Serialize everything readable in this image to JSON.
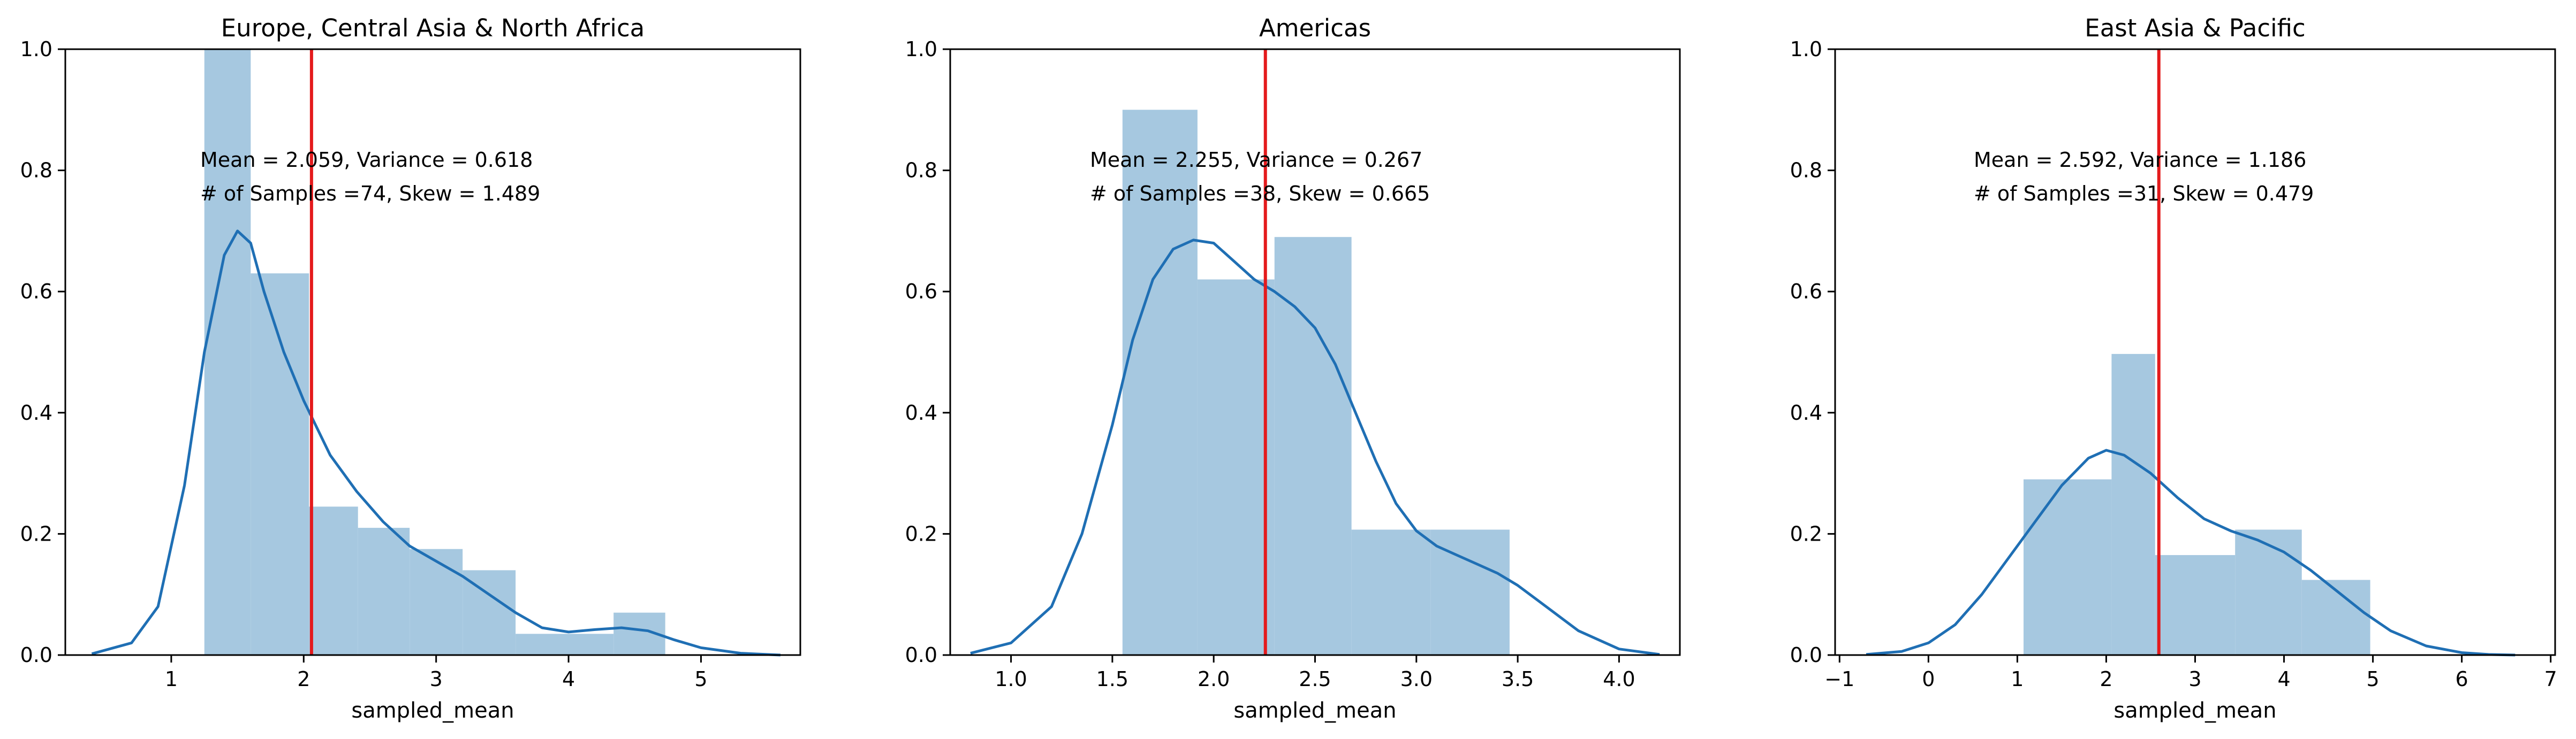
{
  "colors": {
    "bar": "#a6c8e0",
    "kde": "#1f6fb4",
    "mean_line": "#e41a1c",
    "axis": "#000000"
  },
  "chart_data": [
    {
      "type": "bar",
      "title": "Europe, Central Asia & North Africa",
      "xlabel": "sampled_mean",
      "ylabel": "",
      "xlim": [
        0.2,
        5.75
      ],
      "ylim": [
        0,
        1.0
      ],
      "xticks": [
        1,
        2,
        3,
        4,
        5
      ],
      "xtick_labels": [
        "1",
        "2",
        "3",
        "4",
        "5"
      ],
      "yticks": [
        0,
        0.2,
        0.4,
        0.6,
        0.8,
        1.0
      ],
      "ytick_labels": [
        "0.0",
        "0.2",
        "0.4",
        "0.6",
        "0.8",
        "1.0"
      ],
      "bins": [
        {
          "x0": 1.25,
          "x1": 1.6,
          "value": 1.0
        },
        {
          "x0": 1.6,
          "x1": 2.04,
          "value": 0.63
        },
        {
          "x0": 2.04,
          "x1": 2.41,
          "value": 0.245
        },
        {
          "x0": 2.41,
          "x1": 2.8,
          "value": 0.21
        },
        {
          "x0": 2.8,
          "x1": 3.2,
          "value": 0.175
        },
        {
          "x0": 3.2,
          "x1": 3.6,
          "value": 0.14
        },
        {
          "x0": 3.6,
          "x1": 4.34,
          "value": 0.035
        },
        {
          "x0": 4.34,
          "x1": 4.73,
          "value": 0.07
        }
      ],
      "kde": {
        "x": [
          0.4,
          0.7,
          0.9,
          1.1,
          1.25,
          1.4,
          1.5,
          1.6,
          1.7,
          1.85,
          2.0,
          2.2,
          2.4,
          2.6,
          2.8,
          3.0,
          3.2,
          3.4,
          3.6,
          3.8,
          4.0,
          4.2,
          4.4,
          4.6,
          4.8,
          5.0,
          5.3,
          5.6
        ],
        "y": [
          0.002,
          0.02,
          0.08,
          0.28,
          0.5,
          0.66,
          0.7,
          0.68,
          0.6,
          0.5,
          0.42,
          0.33,
          0.27,
          0.22,
          0.18,
          0.155,
          0.13,
          0.1,
          0.07,
          0.045,
          0.038,
          0.042,
          0.045,
          0.04,
          0.025,
          0.012,
          0.003,
          0.0
        ]
      },
      "mean": 2.059,
      "annotations": [
        "Mean = 2.059, Variance = 0.618",
        "# of Samples =74, Skew = 1.489"
      ]
    },
    {
      "type": "bar",
      "title": "Americas",
      "xlabel": "sampled_mean",
      "ylabel": "",
      "xlim": [
        0.7,
        4.3
      ],
      "ylim": [
        0,
        1.0
      ],
      "xticks": [
        1.0,
        1.5,
        2.0,
        2.5,
        3.0,
        3.5,
        4.0
      ],
      "xtick_labels": [
        "1.0",
        "1.5",
        "2.0",
        "2.5",
        "3.0",
        "3.5",
        "4.0"
      ],
      "yticks": [
        0,
        0.2,
        0.4,
        0.6,
        0.8,
        1.0
      ],
      "ytick_labels": [
        "0.0",
        "0.2",
        "0.4",
        "0.6",
        "0.8",
        "1.0"
      ],
      "bins": [
        {
          "x0": 1.55,
          "x1": 1.92,
          "value": 0.9
        },
        {
          "x0": 1.92,
          "x1": 2.3,
          "value": 0.62
        },
        {
          "x0": 2.3,
          "x1": 2.68,
          "value": 0.69
        },
        {
          "x0": 2.68,
          "x1": 3.07,
          "value": 0.207
        },
        {
          "x0": 3.07,
          "x1": 3.46,
          "value": 0.207
        }
      ],
      "kde": {
        "x": [
          0.8,
          1.0,
          1.2,
          1.35,
          1.5,
          1.6,
          1.7,
          1.8,
          1.9,
          2.0,
          2.1,
          2.2,
          2.3,
          2.4,
          2.5,
          2.6,
          2.7,
          2.8,
          2.9,
          3.0,
          3.1,
          3.2,
          3.3,
          3.4,
          3.5,
          3.6,
          3.8,
          4.0,
          4.2
        ],
        "y": [
          0.003,
          0.02,
          0.08,
          0.2,
          0.38,
          0.52,
          0.62,
          0.67,
          0.685,
          0.68,
          0.65,
          0.62,
          0.6,
          0.575,
          0.54,
          0.48,
          0.4,
          0.32,
          0.25,
          0.205,
          0.18,
          0.165,
          0.15,
          0.135,
          0.115,
          0.09,
          0.04,
          0.01,
          0.001
        ]
      },
      "mean": 2.255,
      "annotations": [
        "Mean = 2.255, Variance = 0.267",
        "# of Samples =38, Skew = 0.665"
      ]
    },
    {
      "type": "bar",
      "title": "East Asia & Pacific",
      "xlabel": "sampled_mean",
      "ylabel": "",
      "xlim": [
        -1.05,
        7.05
      ],
      "ylim": [
        0,
        1.0
      ],
      "xticks": [
        -1,
        0,
        1,
        2,
        3,
        4,
        5,
        6,
        7
      ],
      "xtick_labels": [
        "−1",
        "0",
        "1",
        "2",
        "3",
        "4",
        "5",
        "6",
        "7"
      ],
      "yticks": [
        0,
        0.2,
        0.4,
        0.6,
        0.8,
        1.0
      ],
      "ytick_labels": [
        "0.0",
        "0.2",
        "0.4",
        "0.6",
        "0.8",
        "1.0"
      ],
      "bins": [
        {
          "x0": 1.07,
          "x1": 2.06,
          "value": 0.29
        },
        {
          "x0": 2.06,
          "x1": 2.55,
          "value": 0.497
        },
        {
          "x0": 2.55,
          "x1": 3.45,
          "value": 0.165
        },
        {
          "x0": 3.45,
          "x1": 4.2,
          "value": 0.207
        },
        {
          "x0": 4.2,
          "x1": 4.97,
          "value": 0.124
        }
      ],
      "kde": {
        "x": [
          -0.7,
          -0.3,
          0.0,
          0.3,
          0.6,
          0.9,
          1.2,
          1.5,
          1.8,
          2.0,
          2.2,
          2.5,
          2.8,
          3.1,
          3.4,
          3.7,
          4.0,
          4.3,
          4.6,
          4.9,
          5.2,
          5.6,
          6.0,
          6.3,
          6.6
        ],
        "y": [
          0.001,
          0.006,
          0.02,
          0.05,
          0.1,
          0.16,
          0.22,
          0.28,
          0.325,
          0.338,
          0.33,
          0.3,
          0.26,
          0.225,
          0.205,
          0.19,
          0.17,
          0.14,
          0.105,
          0.07,
          0.04,
          0.015,
          0.004,
          0.001,
          0.0
        ]
      },
      "mean": 2.592,
      "annotations": [
        "Mean = 2.592, Variance = 1.186",
        "# of Samples =31, Skew = 0.479"
      ]
    }
  ]
}
